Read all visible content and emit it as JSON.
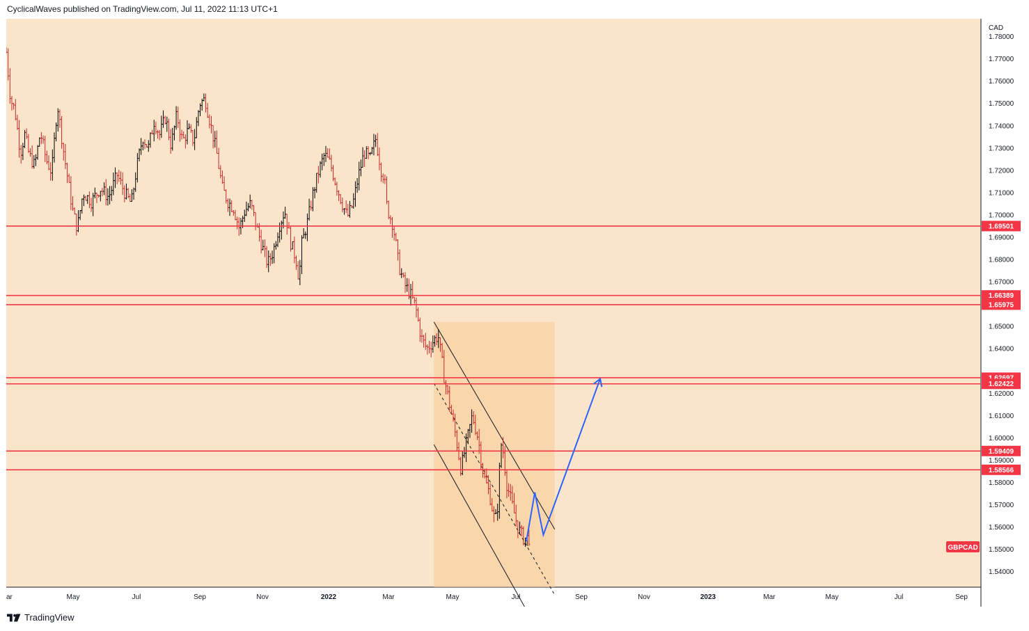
{
  "header": {
    "text": "CyclicalWaves published on TradingView.com, Jul 11, 2022 11:13 UTC+1"
  },
  "footer": {
    "brand": "TradingView"
  },
  "chart_data": {
    "type": "candlestick-bars",
    "symbol_label": "GBPCAD",
    "currency": "CAD",
    "ylim": [
      1.533,
      1.788
    ],
    "y_ticks": [
      "1.78000",
      "1.77000",
      "1.76000",
      "1.75000",
      "1.74000",
      "1.73000",
      "1.72000",
      "1.71000",
      "1.70000",
      "1.69000",
      "1.68000",
      "1.67000",
      "1.65000",
      "1.64000",
      "1.62000",
      "1.61000",
      "1.60000",
      "1.59000",
      "1.58000",
      "1.57000",
      "1.56000",
      "1.55000",
      "1.54000"
    ],
    "x_ticks": [
      {
        "label": "ar",
        "year": false
      },
      {
        "label": "May",
        "year": false
      },
      {
        "label": "Jul",
        "year": false
      },
      {
        "label": "Sep",
        "year": false
      },
      {
        "label": "Nov",
        "year": false
      },
      {
        "label": "2022",
        "year": true
      },
      {
        "label": "Mar",
        "year": false
      },
      {
        "label": "May",
        "year": false
      },
      {
        "label": "Jul",
        "year": false
      },
      {
        "label": "Sep",
        "year": false
      },
      {
        "label": "Nov",
        "year": false
      },
      {
        "label": "2023",
        "year": true
      },
      {
        "label": "Mar",
        "year": false
      },
      {
        "label": "May",
        "year": false
      },
      {
        "label": "Jul",
        "year": false
      },
      {
        "label": "Sep",
        "year": false
      }
    ],
    "levels": [
      "1.69501",
      "1.66389",
      "1.65975",
      "1.62697",
      "1.62422",
      "1.59409",
      "1.58566"
    ],
    "price_path": [
      {
        "x": 0.0,
        "y": 1.773
      },
      {
        "x": 1.5,
        "y": 1.752
      },
      {
        "x": 3,
        "y": 1.747
      },
      {
        "x": 5,
        "y": 1.728
      },
      {
        "x": 6.5,
        "y": 1.736
      },
      {
        "x": 8,
        "y": 1.727
      },
      {
        "x": 10,
        "y": 1.722
      },
      {
        "x": 12,
        "y": 1.737
      },
      {
        "x": 14,
        "y": 1.725
      },
      {
        "x": 16,
        "y": 1.719
      },
      {
        "x": 18,
        "y": 1.75
      },
      {
        "x": 20,
        "y": 1.73
      },
      {
        "x": 22,
        "y": 1.713
      },
      {
        "x": 23.5,
        "y": 1.701
      },
      {
        "x": 25,
        "y": 1.694
      },
      {
        "x": 27,
        "y": 1.71
      },
      {
        "x": 30,
        "y": 1.706
      },
      {
        "x": 33,
        "y": 1.712
      },
      {
        "x": 36,
        "y": 1.708
      },
      {
        "x": 39,
        "y": 1.718
      },
      {
        "x": 42,
        "y": 1.709
      },
      {
        "x": 44,
        "y": 1.705
      },
      {
        "x": 46,
        "y": 1.722
      },
      {
        "x": 48,
        "y": 1.735
      },
      {
        "x": 50,
        "y": 1.73
      },
      {
        "x": 52,
        "y": 1.742
      },
      {
        "x": 54,
        "y": 1.736
      },
      {
        "x": 56,
        "y": 1.744
      },
      {
        "x": 58,
        "y": 1.731
      },
      {
        "x": 60,
        "y": 1.745
      },
      {
        "x": 62,
        "y": 1.733
      },
      {
        "x": 64,
        "y": 1.738
      },
      {
        "x": 66,
        "y": 1.733
      },
      {
        "x": 68,
        "y": 1.75
      },
      {
        "x": 70,
        "y": 1.752
      },
      {
        "x": 72,
        "y": 1.74
      },
      {
        "x": 74,
        "y": 1.728
      },
      {
        "x": 76,
        "y": 1.712
      },
      {
        "x": 78,
        "y": 1.706
      },
      {
        "x": 80,
        "y": 1.703
      },
      {
        "x": 82,
        "y": 1.694
      },
      {
        "x": 84,
        "y": 1.702
      },
      {
        "x": 86,
        "y": 1.705
      },
      {
        "x": 88,
        "y": 1.695
      },
      {
        "x": 90,
        "y": 1.686
      },
      {
        "x": 92,
        "y": 1.678
      },
      {
        "x": 94,
        "y": 1.684
      },
      {
        "x": 96,
        "y": 1.695
      },
      {
        "x": 98,
        "y": 1.702
      },
      {
        "x": 100,
        "y": 1.688
      },
      {
        "x": 102,
        "y": 1.68
      },
      {
        "x": 103,
        "y": 1.671
      },
      {
        "x": 104,
        "y": 1.687
      },
      {
        "x": 106,
        "y": 1.697
      },
      {
        "x": 108,
        "y": 1.71
      },
      {
        "x": 110,
        "y": 1.72
      },
      {
        "x": 112,
        "y": 1.727
      },
      {
        "x": 114,
        "y": 1.723
      },
      {
        "x": 116,
        "y": 1.714
      },
      {
        "x": 118,
        "y": 1.706
      },
      {
        "x": 120,
        "y": 1.699
      },
      {
        "x": 122,
        "y": 1.705
      },
      {
        "x": 124,
        "y": 1.718
      },
      {
        "x": 126,
        "y": 1.728
      },
      {
        "x": 128,
        "y": 1.725
      },
      {
        "x": 130,
        "y": 1.734
      },
      {
        "x": 132,
        "y": 1.72
      },
      {
        "x": 133,
        "y": 1.717
      },
      {
        "x": 134,
        "y": 1.703
      },
      {
        "x": 136,
        "y": 1.696
      },
      {
        "x": 137,
        "y": 1.688
      },
      {
        "x": 138,
        "y": 1.678
      },
      {
        "x": 140,
        "y": 1.669
      },
      {
        "x": 142,
        "y": 1.665
      },
      {
        "x": 144,
        "y": 1.659
      },
      {
        "x": 146,
        "y": 1.645
      },
      {
        "x": 148,
        "y": 1.64
      },
      {
        "x": 150,
        "y": 1.643
      },
      {
        "x": 152,
        "y": 1.646
      },
      {
        "x": 154,
        "y": 1.628
      },
      {
        "x": 156,
        "y": 1.615
      },
      {
        "x": 158,
        "y": 1.602
      },
      {
        "x": 160,
        "y": 1.586
      },
      {
        "x": 162,
        "y": 1.598
      },
      {
        "x": 164,
        "y": 1.61
      },
      {
        "x": 166,
        "y": 1.6
      },
      {
        "x": 168,
        "y": 1.583
      },
      {
        "x": 170,
        "y": 1.575
      },
      {
        "x": 172,
        "y": 1.562
      },
      {
        "x": 173,
        "y": 1.57
      },
      {
        "x": 174,
        "y": 1.598
      },
      {
        "x": 175,
        "y": 1.593
      },
      {
        "x": 176,
        "y": 1.58
      },
      {
        "x": 178,
        "y": 1.57
      },
      {
        "x": 180,
        "y": 1.56
      },
      {
        "x": 182,
        "y": 1.555
      },
      {
        "x": 184,
        "y": 1.555
      }
    ],
    "channel": {
      "upper": [
        {
          "x": 150.5,
          "y": 1.652
        },
        {
          "x": 193,
          "y": 1.559
        }
      ],
      "lower": [
        {
          "x": 150.5,
          "y": 1.597
        },
        {
          "x": 193,
          "y": 1.5
        }
      ],
      "mid": [
        {
          "x": 150.5,
          "y": 1.6245
        },
        {
          "x": 193,
          "y": 1.5295
        }
      ],
      "box": {
        "x0": 150.5,
        "x1": 193,
        "y0": 1.533,
        "y1": 1.652
      }
    },
    "projection": [
      {
        "x": 183,
        "y": 1.5535
      },
      {
        "x": 186,
        "y": 1.5755
      },
      {
        "x": 189,
        "y": 1.5565
      },
      {
        "x": 209,
        "y": 1.6265
      }
    ],
    "x_domain": [
      0,
      343
    ]
  },
  "colors": {
    "background": "#fae5cb",
    "level_line": "#f23645",
    "level_tag": "#f23645",
    "candle": "#000000",
    "channel_fill": "#f9cb96",
    "projection": "#2962ff",
    "symbol_tag": "#f23645"
  }
}
